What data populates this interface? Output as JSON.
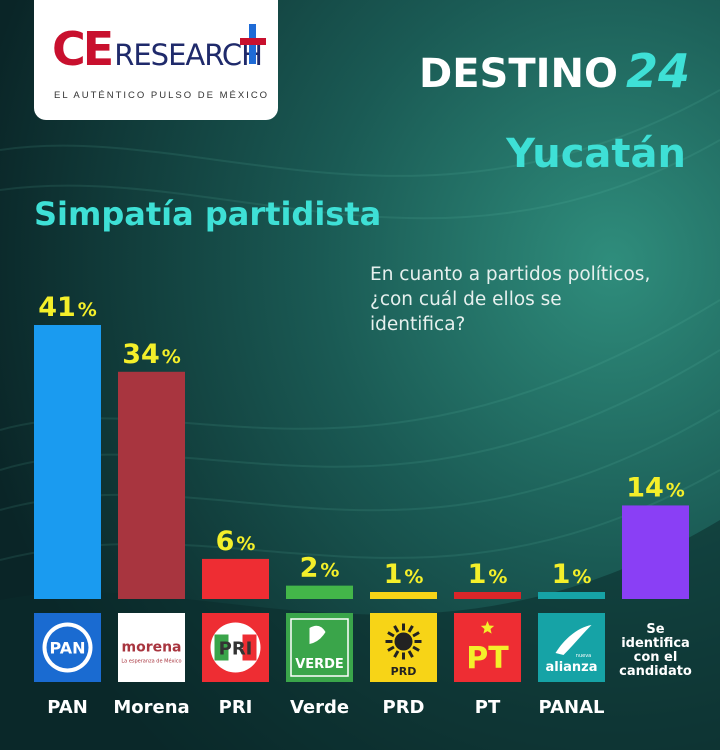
{
  "brand": {
    "name_ce": "CE",
    "name_rest": "RESEARCH",
    "tagline": "EL AUTÉNTICO PULSO DE MÉXICO",
    "colors": {
      "ce_red": "#c8102e",
      "navy": "#1f2a6b",
      "accent_blue": "#1e6bd6"
    }
  },
  "header": {
    "title": "DESTINO",
    "title_number": "24",
    "region": "Yucatán"
  },
  "chart_data": {
    "type": "bar",
    "title": "Simpatía partidista",
    "subtitle": "En cuanto a partidos políticos, ¿con cuál de ellos se identifica?",
    "xlabel": "",
    "ylabel": "",
    "ylim": [
      0,
      41
    ],
    "grid": false,
    "legend": "none",
    "value_suffix": "%",
    "categories": [
      "PAN",
      "Morena",
      "PRI",
      "Verde",
      "PRD",
      "PT",
      "PANAL",
      ""
    ],
    "values": [
      41,
      34,
      6,
      2,
      1,
      1,
      1,
      14
    ],
    "bar_colors": [
      "#1a9bf0",
      "#a8353f",
      "#ee2d33",
      "#43b649",
      "#f7d417",
      "#d92629",
      "#16a3a6",
      "#8a3ff5"
    ],
    "value_label_color": "#f4ef2a",
    "logos": [
      {
        "icon": "pan-logo-icon",
        "text": "PAN",
        "bg": "#1a6bd1"
      },
      {
        "icon": "morena-logo-icon",
        "text": "morena",
        "subtext": "La esperanza de México",
        "bg": "#ffffff",
        "fg": "#a8353f"
      },
      {
        "icon": "pri-logo-icon",
        "text": "PRI",
        "bg": "#ee2d33"
      },
      {
        "icon": "verde-logo-icon",
        "text": "VERDE",
        "bg": "#3aa54a"
      },
      {
        "icon": "prd-logo-icon",
        "text": "PRD",
        "bg": "#f7d417"
      },
      {
        "icon": "pt-logo-icon",
        "text": "PT",
        "bg": "#ee2d33"
      },
      {
        "icon": "nueva-alianza-logo-icon",
        "text": "alianza",
        "subtext": "nueva",
        "bg": "#16a3a6"
      }
    ],
    "candidate_note": [
      "Se",
      "identifica",
      "con el",
      "candidato"
    ]
  }
}
